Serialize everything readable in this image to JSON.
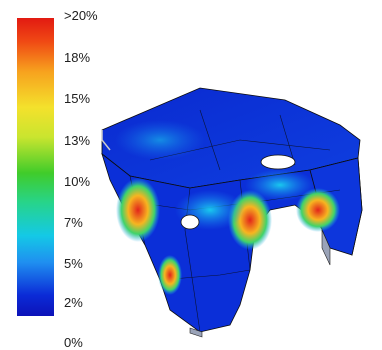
{
  "legend": {
    "ticks": [
      "0%",
      "2%",
      "5%",
      "7%",
      "10%",
      "13%",
      "15%",
      "18%",
      ">20%"
    ],
    "gradient_colors": [
      "#e21a12",
      "#f7a21e",
      "#f4e12c",
      "#40cc2a",
      "#14c9e6",
      "#1f8ff0",
      "#0c12b8"
    ]
  },
  "model": {
    "base_color": "#0a2ad0",
    "hot_color": "#e2241b",
    "warm_color": "#3fd36a"
  }
}
